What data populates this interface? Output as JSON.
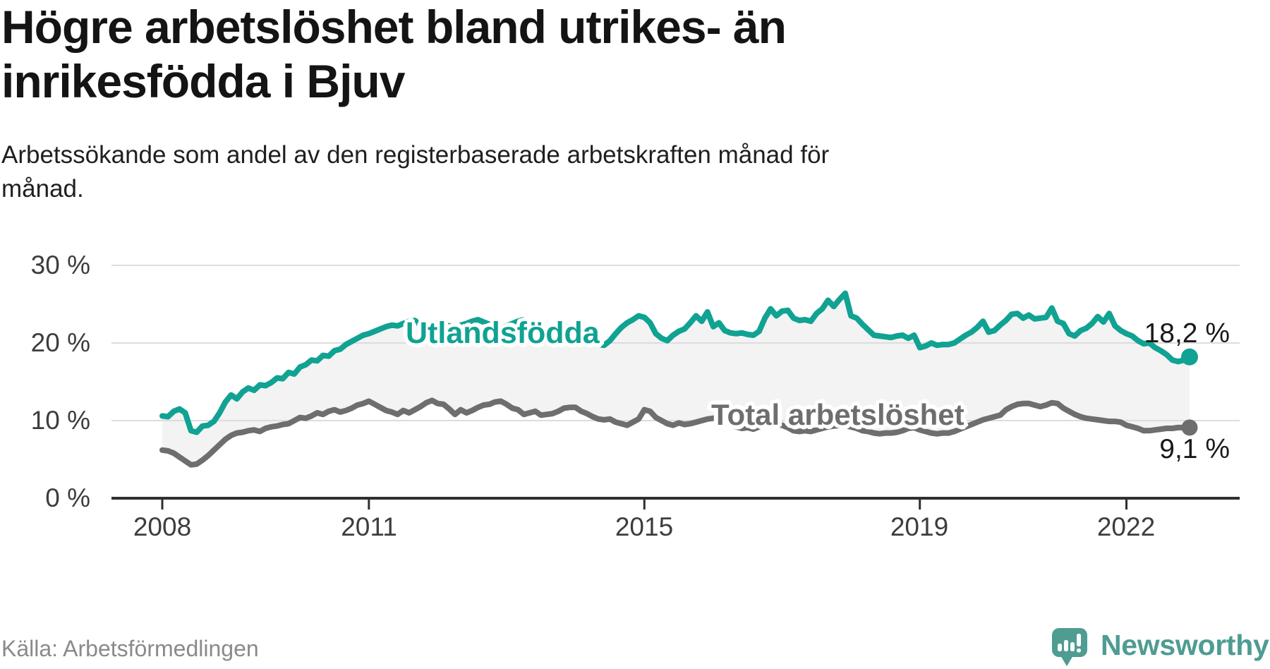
{
  "title_lines": [
    "Högre arbetslöshet bland utrikes- än",
    "inrikesfödda i Bjuv"
  ],
  "subtitle_lines": [
    "Arbetssökande som andel av den registerbaserade arbetskraften månad för",
    "månad."
  ],
  "source": "Källa: Arbetsförmedlingen",
  "brand": {
    "name": "Newsworthy"
  },
  "colors": {
    "foreign_line": "#10a292",
    "total_line": "#6e6e6e",
    "area_fill": "#f3f3f3",
    "grid": "#dcdcdc",
    "axis": "#2f2f2f",
    "brand_teal": "#4e9c92",
    "end_label_text": "#191919",
    "tick_label_text": "#3d3d3d"
  },
  "chart_data": {
    "type": "line",
    "title": "Högre arbetslöshet bland utrikes- än inrikesfödda i Bjuv",
    "subtitle": "Arbetssökande som andel av den registerbaserade arbetskraften månad för månad.",
    "x_unit": "month",
    "x_range": [
      "2008-01",
      "2022-12"
    ],
    "x_ticks": [
      "2008",
      "2011",
      "2015",
      "2019",
      "2022"
    ],
    "y_tick_labels": [
      "0 %",
      "10 %",
      "20 %",
      "30 %"
    ],
    "gridline_values": [
      10,
      20,
      30
    ],
    "ylim": [
      0,
      31
    ],
    "grid": true,
    "legend_position": "inline-labels",
    "series": [
      {
        "name": "Utlandsfödda",
        "color": "#10a292",
        "end_label": "18,2 %",
        "end_value": 18.2,
        "values": [
          10.6,
          10.5,
          11.2,
          11.5,
          11.0,
          8.7,
          8.5,
          9.3,
          9.4,
          9.9,
          11.0,
          12.4,
          13.3,
          12.8,
          13.7,
          14.2,
          13.9,
          14.6,
          14.5,
          14.9,
          15.5,
          15.4,
          16.2,
          16.0,
          16.9,
          17.2,
          17.8,
          17.7,
          18.4,
          18.3,
          19.0,
          19.2,
          19.8,
          20.2,
          20.6,
          21.0,
          21.2,
          21.5,
          21.8,
          22.1,
          22.3,
          22.2,
          22.5,
          22.8,
          22.9,
          22.3,
          21.7,
          22.1,
          22.6,
          22.4,
          22.2,
          22.0,
          22.3,
          22.5,
          22.8,
          23.0,
          22.7,
          22.4,
          22.1,
          21.9,
          22.2,
          22.5,
          22.8,
          23.0,
          22.6,
          22.3,
          22.0,
          21.8,
          22.1,
          22.4,
          22.2,
          21.9,
          21.5,
          21.2,
          20.8,
          20.2,
          19.8,
          19.7,
          20.3,
          21.2,
          22.0,
          22.6,
          23.0,
          23.5,
          23.3,
          22.6,
          21.2,
          20.6,
          20.3,
          21.0,
          21.5,
          21.8,
          22.6,
          23.5,
          22.8,
          24.0,
          22.1,
          22.6,
          21.6,
          21.3,
          21.2,
          21.3,
          21.1,
          21.0,
          21.5,
          23.2,
          24.4,
          23.5,
          24.1,
          24.2,
          23.2,
          22.9,
          23.0,
          22.8,
          23.8,
          24.4,
          25.5,
          24.7,
          25.6,
          26.4,
          23.5,
          23.2,
          22.4,
          21.7,
          21.0,
          20.9,
          20.8,
          20.7,
          20.9,
          21.0,
          20.6,
          21.0,
          19.4,
          19.6,
          20.0,
          19.7,
          19.8,
          19.8,
          20.0,
          20.5,
          21.0,
          21.4,
          22.0,
          22.8,
          21.4,
          21.6,
          22.3,
          22.9,
          23.7,
          23.8,
          23.2,
          23.6,
          23.1,
          23.2,
          23.3,
          24.5,
          22.8,
          22.5,
          21.2,
          20.9,
          21.6,
          21.9,
          22.5,
          23.4,
          22.7,
          23.8,
          22.2,
          21.6,
          21.2,
          20.9,
          20.3,
          19.9,
          20.0,
          19.4,
          19.0,
          18.5,
          17.8,
          17.6,
          17.8,
          18.2
        ]
      },
      {
        "name": "Total arbetslöshet",
        "color": "#6e6e6e",
        "end_label": "9,1 %",
        "end_value": 9.1,
        "values": [
          6.2,
          6.1,
          5.8,
          5.3,
          4.8,
          4.3,
          4.4,
          4.9,
          5.5,
          6.2,
          6.9,
          7.6,
          8.1,
          8.4,
          8.5,
          8.7,
          8.8,
          8.6,
          9.0,
          9.2,
          9.3,
          9.5,
          9.6,
          10.0,
          10.4,
          10.3,
          10.6,
          11.0,
          10.8,
          11.2,
          11.4,
          11.1,
          11.3,
          11.6,
          12.0,
          12.2,
          12.5,
          12.1,
          11.7,
          11.3,
          11.1,
          10.8,
          11.3,
          11.0,
          11.4,
          11.8,
          12.3,
          12.6,
          12.2,
          12.1,
          11.5,
          10.8,
          11.4,
          11.0,
          11.3,
          11.7,
          12.0,
          12.1,
          12.4,
          12.5,
          12.1,
          11.6,
          11.4,
          10.8,
          11.0,
          11.2,
          10.7,
          10.8,
          10.9,
          11.2,
          11.6,
          11.7,
          11.7,
          11.2,
          10.9,
          10.5,
          10.2,
          10.1,
          10.2,
          9.8,
          9.6,
          9.4,
          9.8,
          10.2,
          11.4,
          11.2,
          10.4,
          10.0,
          9.6,
          9.4,
          9.7,
          9.5,
          9.6,
          9.8,
          10.0,
          10.2,
          10.3,
          10.4,
          10.2,
          9.6,
          9.2,
          9.0,
          9.1,
          8.9,
          9.2,
          9.4,
          9.6,
          9.5,
          9.4,
          9.1,
          8.7,
          8.6,
          8.7,
          8.6,
          8.8,
          9.0,
          9.2,
          9.3,
          9.4,
          9.3,
          9.2,
          9.0,
          8.7,
          8.6,
          8.4,
          8.3,
          8.4,
          8.4,
          8.5,
          8.7,
          9.0,
          9.1,
          8.8,
          8.6,
          8.4,
          8.3,
          8.4,
          8.4,
          8.6,
          8.9,
          9.2,
          9.5,
          9.8,
          10.1,
          10.3,
          10.5,
          10.7,
          11.4,
          11.8,
          12.1,
          12.2,
          12.2,
          12.0,
          11.8,
          12.0,
          12.3,
          12.2,
          11.6,
          11.2,
          10.8,
          10.5,
          10.3,
          10.2,
          10.1,
          10.0,
          9.9,
          9.9,
          9.8,
          9.4,
          9.2,
          9.0,
          8.7,
          8.7,
          8.8,
          8.9,
          9.0,
          9.0,
          9.1,
          9.1,
          9.1
        ]
      }
    ]
  }
}
